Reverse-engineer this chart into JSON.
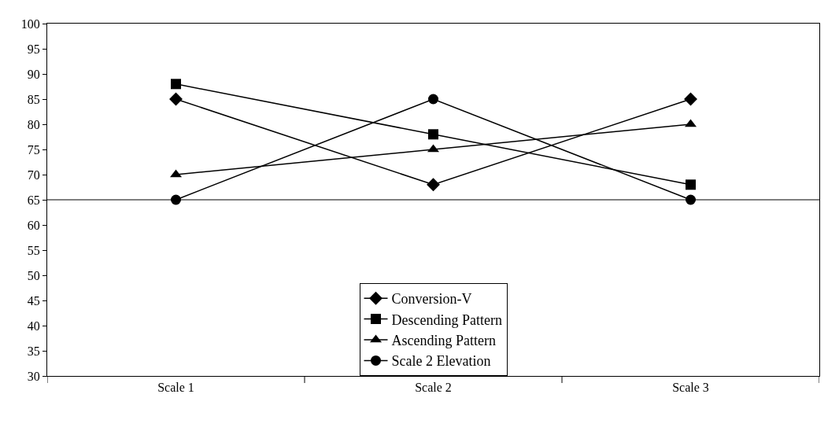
{
  "chart_data": {
    "type": "line",
    "categories": [
      "Scale 1",
      "Scale 2",
      "Scale 3"
    ],
    "series": [
      {
        "name": "Conversion-V",
        "color": "#000000",
        "marker": "diamond",
        "values": [
          85,
          68,
          85
        ]
      },
      {
        "name": "Descending Pattern",
        "color": "#000000",
        "marker": "square",
        "values": [
          88,
          78,
          68
        ]
      },
      {
        "name": "Ascending Pattern",
        "color": "#000000",
        "marker": "triangle",
        "values": [
          70,
          75,
          80
        ]
      },
      {
        "name": "Scale 2 Elevation",
        "color": "#000000",
        "marker": "circle",
        "values": [
          65,
          85,
          65
        ]
      }
    ],
    "ylim": [
      30,
      100
    ],
    "yticks": [
      30,
      35,
      40,
      45,
      50,
      55,
      60,
      65,
      70,
      75,
      80,
      85,
      90,
      95,
      100
    ],
    "ref_lines": [
      {
        "axis": "y",
        "value": 65,
        "color": "#000000"
      }
    ],
    "grid": false,
    "legend": "bottom",
    "line_style": "solid"
  }
}
